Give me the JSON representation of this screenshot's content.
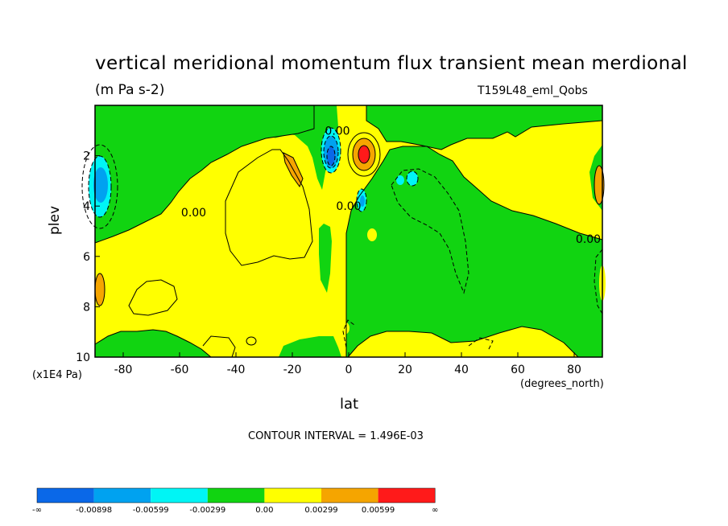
{
  "chart_data": {
    "type": "heatmap",
    "title": "vertical meridional momentum flux transient mean merdional",
    "units": "(m Pa s-2)",
    "subtitle": "T159L48_eml_Qobs",
    "xlabel": "lat",
    "x_unit": "(degrees_north)",
    "ylabel": "plev",
    "y_unit": "(x1E4 Pa)",
    "xlim": [
      -90,
      90
    ],
    "ylim": [
      10,
      0
    ],
    "x_ticks": [
      -80,
      -60,
      -40,
      -20,
      0,
      20,
      40,
      60,
      80
    ],
    "x_tick_labels": [
      "-80",
      "-60",
      "-40",
      "-20",
      "0",
      "20",
      "40",
      "60",
      "80"
    ],
    "y_ticks": [
      2,
      4,
      6,
      8,
      10
    ],
    "y_tick_labels": [
      "2",
      "4",
      "6",
      "8",
      "10"
    ],
    "contour_interval_text": "CONTOUR INTERVAL = 1.496E-03",
    "contour_labels": [
      {
        "text": "0.00",
        "lat": -4,
        "plev": 1.0
      },
      {
        "text": "0.00",
        "lat": -55,
        "plev": 4.25
      },
      {
        "text": "0.00",
        "lat": 0,
        "plev": 4.0
      },
      {
        "text": "0.00",
        "lat": 85,
        "plev": 5.3
      }
    ],
    "colorbar": {
      "boundaries": [
        "-∞",
        "-0.00898",
        "-0.00599",
        "-0.00299",
        "0.00",
        "0.00299",
        "0.00599",
        "∞"
      ],
      "colors": [
        "#0a68e8",
        "#00a2f0",
        "#00f5f5",
        "#11d411",
        "#ffff00",
        "#f5a500",
        "#ff1a1a"
      ]
    },
    "background_level": {
      "color": "#ffff00",
      "range": "0.00 to 0.00299"
    },
    "regions": [
      {
        "level": "0.00 to 0.00299",
        "color": "#ffff00",
        "description": "dominant field"
      },
      {
        "level": "-0.00299 to 0.00",
        "color": "#11d411",
        "extent": "upper levels 0-2 all latitudes except near equator"
      },
      {
        "level": "-0.00299 to 0.00",
        "color": "#11d411",
        "extent": "southern high latitudes 70-90S, 2-5"
      },
      {
        "level": "-0.00299 to 0.00",
        "color": "#11d411",
        "extent": "northern hemisphere 3-90N below 2"
      },
      {
        "level": "-0.00599 to -0.00299",
        "color": "#00f5f5",
        "extent": "near 88S, 3"
      },
      {
        "level": "-0.00898 to -0.00599",
        "color": "#00a2f0",
        "extent": "near 88S, 3"
      },
      {
        "level": "-0.00898 to -0.00599",
        "color": "#00a2f0",
        "extent": "near 6S, 2"
      },
      {
        "level": "-∞ to -0.00898",
        "color": "#0a68e8",
        "extent": "near 6S, 2.2"
      },
      {
        "level": "0.00299 to 0.00599",
        "color": "#f5a500",
        "extent": "near 5N, 2"
      },
      {
        "level": "0.00599 to ∞",
        "color": "#ff1a1a",
        "extent": "near 5N, 2"
      },
      {
        "level": "0.00299 to 0.00599",
        "color": "#f5a500",
        "extent": "near 22S, 2.5"
      },
      {
        "level": "0.00299 to 0.00599",
        "color": "#f5a500",
        "extent": "near 88N, 3"
      },
      {
        "level": "0.00299 to 0.00599",
        "color": "#f5a500",
        "extent": "near 88S, 7"
      }
    ]
  }
}
